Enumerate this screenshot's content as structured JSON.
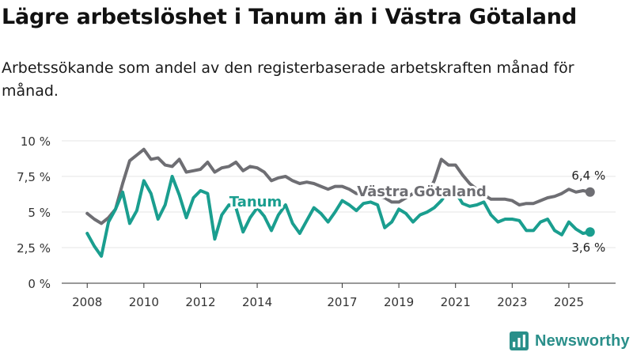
{
  "title": "Lägre arbetslöshet i Tanum än i Västra Götaland",
  "subtitle": "Arbetssökande som andel av den registerbaserade arbetskraften månad för månad.",
  "logo_text": "Newsworthy",
  "colors": {
    "tanum": "#1a9e8f",
    "vastra": "#6e6e73",
    "grid": "#e6e6e6",
    "logo": "#2a8f8a"
  },
  "chart_data": {
    "type": "line",
    "title": "Lägre arbetslöshet i Tanum än i Västra Götaland",
    "xlabel": "",
    "ylabel": "",
    "x_ticks": [
      {
        "x": 2008.0,
        "label": "2008"
      },
      {
        "x": 2010.0,
        "label": "2010"
      },
      {
        "x": 2012.0,
        "label": "2012"
      },
      {
        "x": 2014.0,
        "label": "2014"
      },
      {
        "x": 2017.0,
        "label": "2017"
      },
      {
        "x": 2019.0,
        "label": "2019"
      },
      {
        "x": 2021.0,
        "label": "2021"
      },
      {
        "x": 2023.0,
        "label": "2023"
      },
      {
        "x": 2025.0,
        "label": "2025"
      }
    ],
    "y_ticks": [
      {
        "y": 0,
        "label": "0 %"
      },
      {
        "y": 2.5,
        "label": "2,5 %"
      },
      {
        "y": 5,
        "label": "5 %"
      },
      {
        "y": 7.5,
        "label": "7,5 %"
      },
      {
        "y": 10,
        "label": "10 %"
      }
    ],
    "xlim": [
      2007.1,
      2026.65
    ],
    "ylim": [
      0,
      10
    ],
    "series": [
      {
        "name": "Västra Götaland",
        "end_label": "6,4 %",
        "x": [
          2008.0,
          2008.25,
          2008.5,
          2008.75,
          2009.0,
          2009.25,
          2009.5,
          2009.75,
          2010.0,
          2010.25,
          2010.5,
          2010.75,
          2011.0,
          2011.25,
          2011.5,
          2011.75,
          2012.0,
          2012.25,
          2012.5,
          2012.75,
          2013.0,
          2013.25,
          2013.5,
          2013.75,
          2014.0,
          2014.25,
          2014.5,
          2014.75,
          2015.0,
          2015.25,
          2015.5,
          2015.75,
          2016.0,
          2016.25,
          2016.5,
          2016.75,
          2017.0,
          2017.25,
          2017.5,
          2017.75,
          2018.0,
          2018.25,
          2018.5,
          2018.75,
          2019.0,
          2019.25,
          2019.5,
          2019.75,
          2020.0,
          2020.25,
          2020.5,
          2020.75,
          2021.0,
          2021.25,
          2021.5,
          2021.75,
          2022.0,
          2022.25,
          2022.5,
          2022.75,
          2023.0,
          2023.25,
          2023.5,
          2023.75,
          2024.0,
          2024.25,
          2024.5,
          2024.75,
          2025.0,
          2025.25,
          2025.5,
          2025.75
        ],
        "values": [
          4.9,
          4.5,
          4.2,
          4.6,
          5.2,
          7.0,
          8.6,
          9.0,
          9.4,
          8.7,
          8.8,
          8.3,
          8.2,
          8.7,
          7.8,
          7.9,
          8.0,
          8.5,
          7.8,
          8.1,
          8.2,
          8.5,
          7.9,
          8.2,
          8.1,
          7.8,
          7.2,
          7.4,
          7.5,
          7.2,
          7.0,
          7.1,
          7.0,
          6.8,
          6.6,
          6.8,
          6.8,
          6.6,
          6.3,
          6.3,
          6.4,
          6.1,
          6.0,
          5.7,
          5.7,
          6.0,
          6.3,
          6.7,
          6.2,
          7.2,
          8.7,
          8.3,
          8.3,
          7.6,
          7.0,
          6.6,
          6.2,
          5.9,
          5.9,
          5.9,
          5.8,
          5.5,
          5.6,
          5.6,
          5.8,
          6.0,
          6.1,
          6.3,
          6.6,
          6.4,
          6.5,
          6.4
        ]
      },
      {
        "name": "Tanum",
        "end_label": "3,6 %",
        "x": [
          2008.0,
          2008.25,
          2008.5,
          2008.75,
          2009.0,
          2009.25,
          2009.5,
          2009.75,
          2010.0,
          2010.25,
          2010.5,
          2010.75,
          2011.0,
          2011.25,
          2011.5,
          2011.75,
          2012.0,
          2012.25,
          2012.5,
          2012.75,
          2013.0,
          2013.25,
          2013.5,
          2013.75,
          2014.0,
          2014.25,
          2014.5,
          2014.75,
          2015.0,
          2015.25,
          2015.5,
          2015.75,
          2016.0,
          2016.25,
          2016.5,
          2016.75,
          2017.0,
          2017.25,
          2017.5,
          2017.75,
          2018.0,
          2018.25,
          2018.5,
          2018.75,
          2019.0,
          2019.25,
          2019.5,
          2019.75,
          2020.0,
          2020.25,
          2020.5,
          2020.75,
          2021.0,
          2021.25,
          2021.5,
          2021.75,
          2022.0,
          2022.25,
          2022.5,
          2022.75,
          2023.0,
          2023.25,
          2023.5,
          2023.75,
          2024.0,
          2024.25,
          2024.5,
          2024.75,
          2025.0,
          2025.25,
          2025.5,
          2025.75
        ],
        "values": [
          3.5,
          2.6,
          1.9,
          4.3,
          5.2,
          6.4,
          4.2,
          5.1,
          7.2,
          6.3,
          4.5,
          5.5,
          7.5,
          6.2,
          4.6,
          6.0,
          6.5,
          6.3,
          3.1,
          4.8,
          5.5,
          5.3,
          3.6,
          4.6,
          5.3,
          4.7,
          3.7,
          4.8,
          5.5,
          4.2,
          3.5,
          4.4,
          5.3,
          4.9,
          4.3,
          5.0,
          5.8,
          5.5,
          5.1,
          5.6,
          5.7,
          5.5,
          3.9,
          4.3,
          5.2,
          4.9,
          4.3,
          4.8,
          5.0,
          5.3,
          5.8,
          6.5,
          6.4,
          5.6,
          5.4,
          5.5,
          5.7,
          4.8,
          4.3,
          4.5,
          4.5,
          4.4,
          3.7,
          3.7,
          4.3,
          4.5,
          3.7,
          3.4,
          4.3,
          3.8,
          3.5,
          3.6
        ]
      }
    ],
    "annotations": [
      {
        "text": "Västra Götaland",
        "series": "Västra Götaland"
      },
      {
        "text": "Tanum",
        "series": "Tanum"
      }
    ],
    "grid": true
  }
}
